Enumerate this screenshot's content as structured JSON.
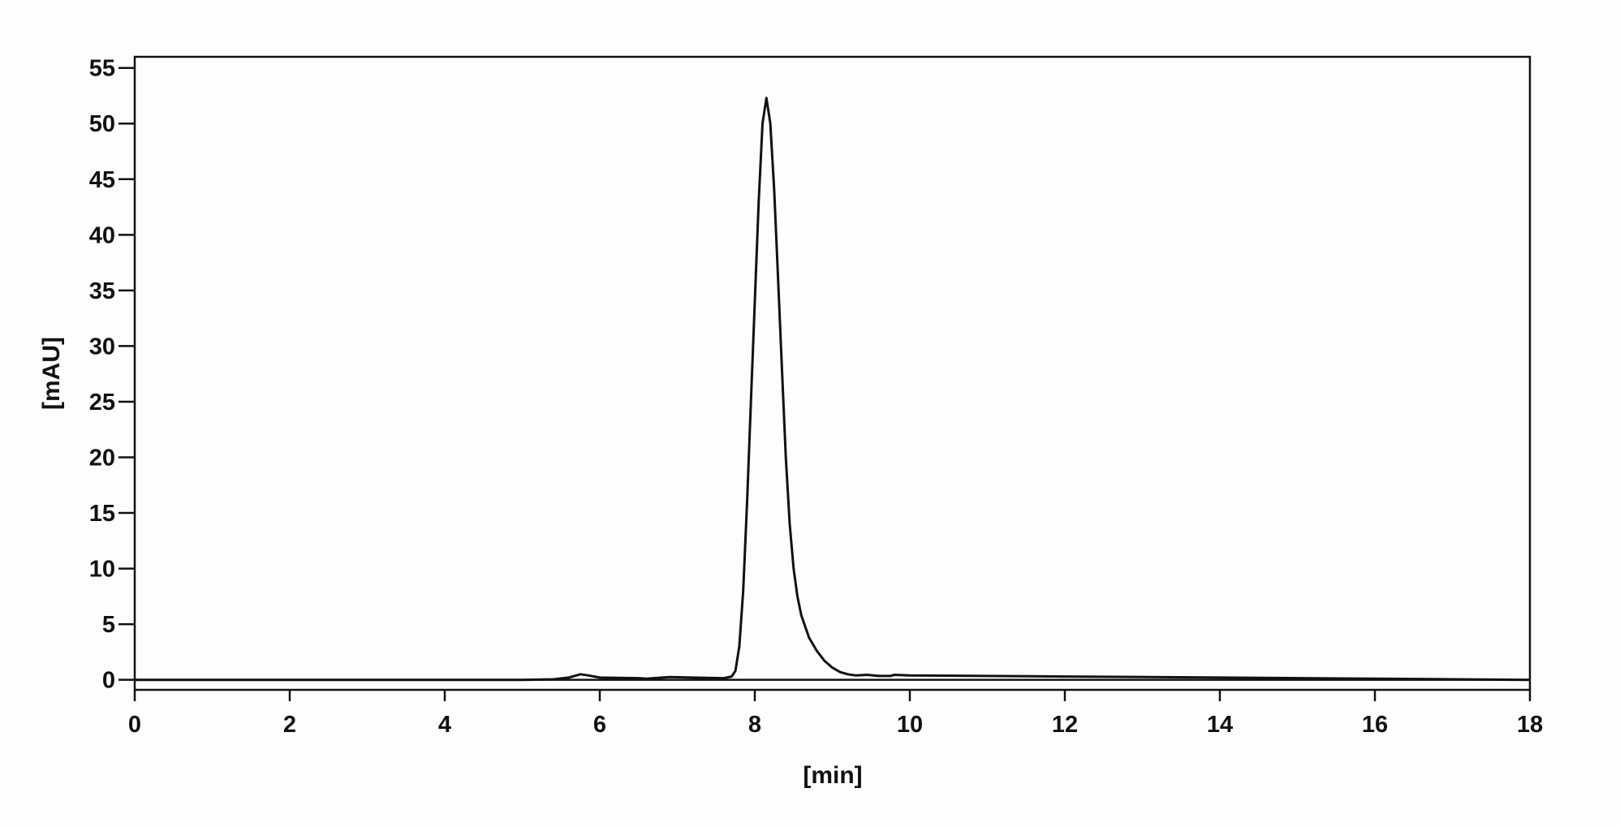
{
  "chart_data": {
    "type": "line",
    "title": "",
    "xlabel": "[min]",
    "ylabel": "[mAU]",
    "xlim": [
      0,
      18
    ],
    "ylim": [
      -0.9,
      56
    ],
    "xticks": [
      0,
      2,
      4,
      6,
      8,
      10,
      12,
      14,
      16,
      18
    ],
    "yticks": [
      0,
      5,
      10,
      15,
      20,
      25,
      30,
      35,
      40,
      45,
      50,
      55
    ],
    "grid": false,
    "legend": "none",
    "line_color": "#111111",
    "series": [
      {
        "x": [
          0,
          5.0,
          5.4,
          5.6,
          5.75,
          5.85,
          6.0,
          6.5,
          6.6,
          6.9,
          7.2,
          7.6,
          7.7,
          7.75,
          7.8,
          7.85,
          7.9,
          7.95,
          8.0,
          8.05,
          8.1,
          8.15,
          8.2,
          8.25,
          8.3,
          8.35,
          8.4,
          8.45,
          8.5,
          8.55,
          8.6,
          8.7,
          8.8,
          8.9,
          9.0,
          9.1,
          9.2,
          9.3,
          9.45,
          9.6,
          9.75,
          9.8,
          10,
          12,
          14,
          16,
          18
        ],
        "y": [
          0,
          0,
          0.05,
          0.2,
          0.5,
          0.4,
          0.2,
          0.15,
          0.1,
          0.25,
          0.2,
          0.15,
          0.3,
          0.8,
          3,
          8,
          16,
          25,
          34,
          43,
          50,
          52.3,
          50,
          44,
          36,
          28,
          20,
          14,
          10,
          7.5,
          5.8,
          3.8,
          2.6,
          1.7,
          1.1,
          0.7,
          0.5,
          0.4,
          0.45,
          0.35,
          0.35,
          0.45,
          0.4,
          0.3,
          0.2,
          0.1,
          0
        ]
      }
    ]
  }
}
